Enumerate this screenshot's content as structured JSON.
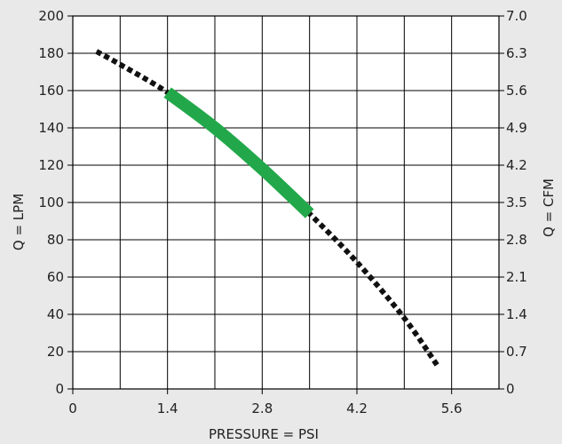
{
  "chart_data": {
    "type": "line",
    "title": "",
    "xlabel": "PRESSURE = PSI",
    "ylabel": "Q = LPM",
    "y2label": "Q = CFM",
    "xlim": [
      0,
      6.3
    ],
    "ylim": [
      0,
      200
    ],
    "y2lim": [
      0,
      7.0
    ],
    "x_ticks": [
      "0",
      "1.4",
      "2.8",
      "4.2",
      "5.6"
    ],
    "x_tick_values": [
      0,
      1.4,
      2.8,
      4.2,
      5.6
    ],
    "x_grid_values": [
      0,
      0.7,
      1.4,
      2.1,
      2.8,
      3.5,
      4.2,
      4.9,
      5.6,
      6.3
    ],
    "y_ticks": [
      "0",
      "20",
      "40",
      "60",
      "80",
      "100",
      "120",
      "140",
      "160",
      "180",
      "200"
    ],
    "y2_ticks": [
      "0",
      "0.7",
      "1.4",
      "2.1",
      "2.8",
      "3.5",
      "4.2",
      "4.9",
      "5.6",
      "6.3",
      "7.0"
    ],
    "grid": true,
    "colors": {
      "curve": "#111111",
      "operating_range": "#22a84a",
      "grid": "#000000",
      "background": "#e9e9ea"
    },
    "series": [
      {
        "style": "dotted",
        "points": [
          [
            0.35,
            181
          ],
          [
            0.7,
            174
          ],
          [
            1.4,
            159
          ],
          [
            2.1,
            140
          ],
          [
            2.8,
            118
          ],
          [
            3.5,
            94
          ],
          [
            4.2,
            68
          ],
          [
            4.9,
            38
          ],
          [
            5.4,
            12
          ]
        ]
      },
      {
        "style": "thick-solid",
        "points": [
          [
            1.4,
            159
          ],
          [
            2.1,
            140
          ],
          [
            2.8,
            118
          ],
          [
            3.5,
            94
          ]
        ]
      }
    ]
  }
}
